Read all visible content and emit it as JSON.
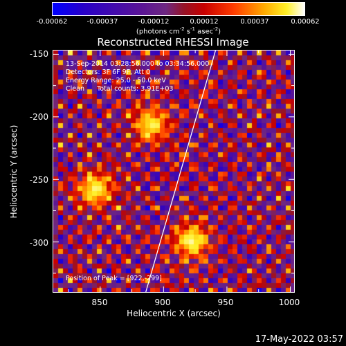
{
  "colorbar": {
    "ticks": [
      "-0.00062",
      "-0.00037",
      "-0.00012",
      "0.00012",
      "0.00037",
      "0.00062"
    ],
    "unit_prefix": "(photons cm",
    "unit_exp1": "-2",
    "unit_mid1": " s",
    "unit_exp2": "-1",
    "unit_mid2": " asec",
    "unit_exp3": "-2",
    "unit_suffix": ")"
  },
  "title": "Reconstructed RHESSI Image",
  "info": {
    "time": "13-Sep-2014 03:28:56.000 to 03:34:56.000",
    "detectors": "Detectors: 3F 6F 9F, Att 0",
    "energy": "Energy Range: 25.0 - 50.0 keV",
    "clean": "Clean      Total counts: 3.91E+03",
    "peak": "Position of Peak = [922,-299]"
  },
  "axes": {
    "xlabel": "Heliocentric X (arcsec)",
    "ylabel": "Heliocentric Y (arcsec)",
    "xticks": [
      "850",
      "900",
      "950",
      "1000"
    ],
    "yticks": [
      "-150",
      "-200",
      "-250",
      "-300"
    ]
  },
  "chart_data": {
    "type": "heatmap",
    "title": "Reconstructed RHESSI Image",
    "xlabel": "Heliocentric X (arcsec)",
    "ylabel": "Heliocentric Y (arcsec)",
    "xlim": [
      813,
      1003
    ],
    "ylim": [
      -340,
      -147
    ],
    "clim": [
      -0.00062,
      0.00062
    ],
    "colormap": "blue-purple-red-yellow-white",
    "sources": [
      {
        "x": 846,
        "y": -258,
        "value": 0.0006
      },
      {
        "x": 890,
        "y": -206,
        "value": 0.00058
      },
      {
        "x": 922,
        "y": -299,
        "value": 0.00062
      }
    ],
    "limb_line": [
      [
        886,
        -340
      ],
      [
        941,
        -147
      ]
    ],
    "peak": [
      922,
      -299
    ]
  },
  "datestamp": "17-May-2022 03:57"
}
